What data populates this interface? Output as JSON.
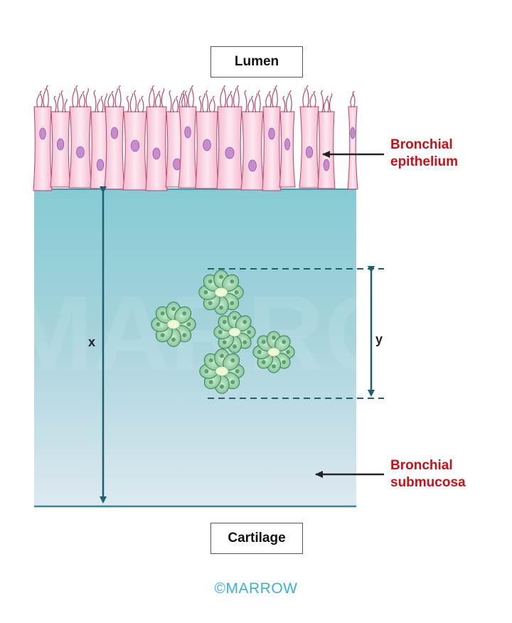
{
  "labels": {
    "lumen": "Lumen",
    "cartilage": "Cartilage",
    "epithelium_line1": "Bronchial",
    "epithelium_line2": "epithelium",
    "submucosa_line1": "Bronchial",
    "submucosa_line2": "submucosa",
    "x": "x",
    "y": "y"
  },
  "watermark": "MARROW",
  "copyright": "©MARROW",
  "colors": {
    "label_red": "#cc0f15",
    "arrow_teal": "#1f5f6e",
    "submucosa_top": "#86cbd4",
    "submucosa_bottom": "#dbe8ef",
    "epithelium_pink": "#f6c9dc",
    "nucleus": "#c98ed0",
    "gland_green": "#8fd0a4"
  }
}
